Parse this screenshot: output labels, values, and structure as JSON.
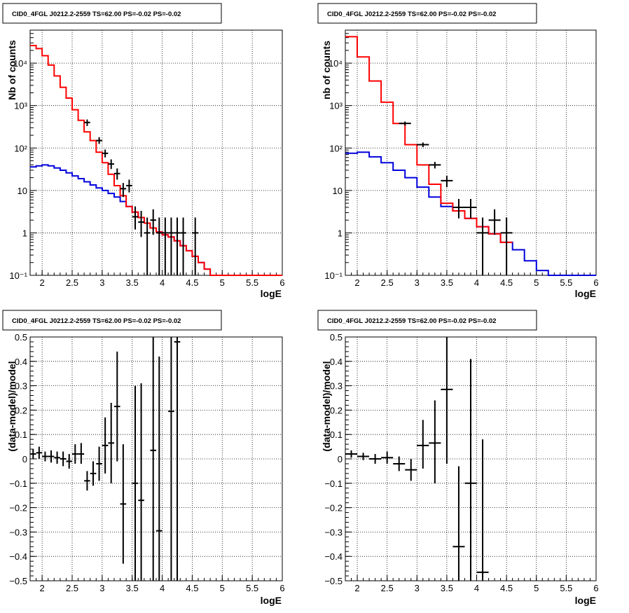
{
  "colors": {
    "frame": "#000000",
    "grid": "#000000",
    "data": "#000000",
    "total_model": "#ff0000",
    "component": "#0000dd"
  },
  "chart_data": [
    {
      "type": "line",
      "title": "CID0_4FGL J0212.2-2559 TS=62.00 PS=-0.02 PS=-0.02",
      "xlabel": "logE",
      "ylabel": "Nb of counts",
      "xlim": [
        1.8,
        6.0
      ],
      "ylim": [
        0.1,
        60000
      ],
      "yscale": "log",
      "grid": true,
      "xticks": [
        "2",
        "2.5",
        "3",
        "3.5",
        "4",
        "4.5",
        "5",
        "5.5",
        "6"
      ],
      "yticks": [
        [
          "10⁻¹",
          0.1
        ],
        [
          "1",
          1
        ],
        [
          "10",
          10
        ],
        [
          "10²",
          100
        ],
        [
          "10³",
          1000
        ],
        [
          "10⁴",
          10000
        ]
      ],
      "step_edges": [
        1.8,
        1.9,
        2.0,
        2.1,
        2.2,
        2.3,
        2.4,
        2.5,
        2.6,
        2.7,
        2.8,
        2.9,
        3.0,
        3.1,
        3.2,
        3.3,
        3.4,
        3.5,
        3.6,
        3.7,
        3.8,
        3.9,
        4.0,
        4.1,
        4.2,
        4.3,
        4.4,
        4.5,
        4.6,
        4.7,
        4.8,
        4.9,
        5.0,
        5.1,
        5.2,
        5.3,
        5.4,
        5.5,
        5.6,
        5.7,
        5.8,
        5.9,
        6.0
      ],
      "series": [
        {
          "role": "component",
          "values": [
            36,
            38,
            40,
            38,
            34,
            30,
            26,
            22,
            19,
            16,
            13.5,
            11.5,
            10,
            8.5,
            7,
            5.5,
            4.2,
            3.1,
            2.3,
            1.7,
            1.3,
            1.05,
            0.9,
            0.8,
            0.65,
            0.5,
            0.38,
            0.28,
            0.2,
            0.14,
            0.1,
            0.1,
            0.1,
            0.1,
            0.1,
            0.1,
            0.1,
            0.1,
            0.1,
            0.1,
            0.1,
            0.1
          ]
        },
        {
          "role": "total",
          "values": [
            26000,
            22000,
            15000,
            9000,
            5000,
            2700,
            1500,
            800,
            450,
            240,
            150,
            80,
            45,
            24,
            13,
            7.5,
            4.2,
            3.1,
            2.3,
            1.7,
            1.3,
            1.05,
            0.9,
            0.8,
            0.65,
            0.5,
            0.38,
            0.28,
            0.2,
            0.14,
            0.1,
            0.1,
            0.1,
            0.1,
            0.1,
            0.1,
            0.1,
            0.1,
            0.1,
            0.1,
            0.1,
            0.1
          ]
        }
      ],
      "points": [
        {
          "x": 2.75,
          "y": 400,
          "xerr": 0.05,
          "ylo": 330,
          "yhi": 470
        },
        {
          "x": 2.95,
          "y": 150,
          "xerr": 0.05,
          "ylo": 125,
          "yhi": 180
        },
        {
          "x": 3.05,
          "y": 75,
          "xerr": 0.05,
          "ylo": 60,
          "yhi": 92
        },
        {
          "x": 3.15,
          "y": 42,
          "xerr": 0.05,
          "ylo": 32,
          "yhi": 54
        },
        {
          "x": 3.25,
          "y": 25,
          "xerr": 0.05,
          "ylo": 18,
          "yhi": 33
        },
        {
          "x": 3.35,
          "y": 11,
          "xerr": 0.05,
          "ylo": 7,
          "yhi": 15
        },
        {
          "x": 3.45,
          "y": 13,
          "xerr": 0.05,
          "ylo": 9,
          "yhi": 18
        },
        {
          "x": 3.55,
          "y": 2.4,
          "xerr": 0.05,
          "ylo": 1.2,
          "yhi": 4.2
        },
        {
          "x": 3.65,
          "y": 1.8,
          "xerr": 0.05,
          "ylo": 0.8,
          "yhi": 3.3
        },
        {
          "x": 3.75,
          "y": 1,
          "xerr": 0.05,
          "ylo": 0.1,
          "yhi": 2.3
        },
        {
          "x": 3.85,
          "y": 2,
          "xerr": 0.05,
          "ylo": 0.9,
          "yhi": 3.6
        },
        {
          "x": 3.95,
          "y": 1,
          "xerr": 0.05,
          "ylo": 0.1,
          "yhi": 2.3
        },
        {
          "x": 4.05,
          "y": 1,
          "xerr": 0.05,
          "ylo": 0.1,
          "yhi": 2.3
        },
        {
          "x": 4.15,
          "y": 1,
          "xerr": 0.05,
          "ylo": 0.1,
          "yhi": 2.3
        },
        {
          "x": 4.25,
          "y": 1,
          "xerr": 0.05,
          "ylo": 0.1,
          "yhi": 2.3
        },
        {
          "x": 4.35,
          "y": 1,
          "xerr": 0.05,
          "ylo": 0.1,
          "yhi": 2.3
        },
        {
          "x": 4.55,
          "y": 1,
          "xerr": 0.05,
          "ylo": 0.1,
          "yhi": 2.3
        }
      ]
    },
    {
      "type": "line",
      "title": "CID0_4FGL J0212.2-2559 TS=62.00 PS=-0.02 PS=-0.02",
      "xlabel": "logE",
      "ylabel": "nb of counts",
      "xlim": [
        1.8,
        6.0
      ],
      "ylim": [
        0.1,
        60000
      ],
      "yscale": "log",
      "grid": true,
      "xticks": [
        "2",
        "2.5",
        "3",
        "3.5",
        "4",
        "4.5",
        "5",
        "5.5",
        "6"
      ],
      "yticks": [
        [
          "10⁻¹",
          0.1
        ],
        [
          "1",
          1
        ],
        [
          "10",
          10
        ],
        [
          "10²",
          100
        ],
        [
          "10³",
          1000
        ],
        [
          "10⁴",
          10000
        ]
      ],
      "step_edges": [
        1.8,
        2.0,
        2.2,
        2.4,
        2.6,
        2.8,
        3.0,
        3.2,
        3.4,
        3.6,
        3.8,
        4.0,
        4.2,
        4.4,
        4.6,
        4.8,
        5.0,
        5.2,
        5.4,
        5.6,
        5.8,
        6.0
      ],
      "series": [
        {
          "role": "component",
          "values": [
            75,
            80,
            62,
            45,
            30,
            20,
            12,
            7,
            4.2,
            3.3,
            2.2,
            1.4,
            0.95,
            0.6,
            0.4,
            0.22,
            0.13,
            0.1,
            0.1,
            0.1,
            0.1
          ]
        },
        {
          "role": "total",
          "values": [
            42000,
            14000,
            3800,
            1200,
            380,
            120,
            40,
            14,
            5,
            3.3,
            2.2,
            1.4,
            0.95,
            0.6
          ]
        }
      ],
      "points": [
        {
          "x": 2.8,
          "y": 380,
          "xerr": 0.1,
          "ylo": 340,
          "yhi": 420
        },
        {
          "x": 3.1,
          "y": 120,
          "xerr": 0.1,
          "ylo": 105,
          "yhi": 135
        },
        {
          "x": 3.3,
          "y": 40,
          "xerr": 0.1,
          "ylo": 33,
          "yhi": 47
        },
        {
          "x": 3.5,
          "y": 17,
          "xerr": 0.1,
          "ylo": 12,
          "yhi": 22
        },
        {
          "x": 3.7,
          "y": 4,
          "xerr": 0.1,
          "ylo": 2.2,
          "yhi": 6.3
        },
        {
          "x": 3.9,
          "y": 4,
          "xerr": 0.1,
          "ylo": 2.2,
          "yhi": 6.3
        },
        {
          "x": 4.1,
          "y": 1,
          "xerr": 0.1,
          "ylo": 0.1,
          "yhi": 2.3
        },
        {
          "x": 4.3,
          "y": 2,
          "xerr": 0.1,
          "ylo": 0.9,
          "yhi": 3.6
        },
        {
          "x": 4.5,
          "y": 1,
          "xerr": 0.1,
          "ylo": 0.1,
          "yhi": 2.3
        }
      ]
    },
    {
      "type": "scatter",
      "title": "CID0_4FGL J0212.2-2559 TS=62.00 PS=-0.02 PS=-0.02",
      "xlabel": "logE",
      "ylabel": "(data-model)/model",
      "xlim": [
        1.8,
        6.0
      ],
      "ylim": [
        -0.5,
        0.5
      ],
      "yscale": "linear",
      "grid": true,
      "xticks": [
        "2",
        "2.5",
        "3",
        "3.5",
        "4",
        "4.5",
        "5",
        "5.5",
        "6"
      ],
      "yticks": [
        [
          "−0.5",
          -0.5
        ],
        [
          "−0.4",
          -0.4
        ],
        [
          "−0.3",
          -0.3
        ],
        [
          "−0.2",
          -0.2
        ],
        [
          "−0.1",
          -0.1
        ],
        [
          "0",
          0
        ],
        [
          "0.1",
          0.1
        ],
        [
          "0.2",
          0.2
        ],
        [
          "0.3",
          0.3
        ],
        [
          "0.4",
          0.4
        ],
        [
          "0.5",
          0.5
        ]
      ],
      "points": [
        {
          "x": 1.85,
          "y": 0.02,
          "xerr": 0.05,
          "ylo": 0.0,
          "yhi": 0.04
        },
        {
          "x": 1.95,
          "y": 0.025,
          "xerr": 0.05,
          "ylo": 0.0,
          "yhi": 0.05
        },
        {
          "x": 2.05,
          "y": 0.01,
          "xerr": 0.05,
          "ylo": -0.01,
          "yhi": 0.03
        },
        {
          "x": 2.15,
          "y": 0.01,
          "xerr": 0.05,
          "ylo": -0.015,
          "yhi": 0.035
        },
        {
          "x": 2.25,
          "y": 0.005,
          "xerr": 0.05,
          "ylo": -0.02,
          "yhi": 0.03
        },
        {
          "x": 2.35,
          "y": 0.0,
          "xerr": 0.05,
          "ylo": -0.03,
          "yhi": 0.03
        },
        {
          "x": 2.45,
          "y": -0.01,
          "xerr": 0.05,
          "ylo": -0.04,
          "yhi": 0.02
        },
        {
          "x": 2.55,
          "y": 0.02,
          "xerr": 0.05,
          "ylo": -0.02,
          "yhi": 0.06
        },
        {
          "x": 2.65,
          "y": 0.02,
          "xerr": 0.05,
          "ylo": -0.02,
          "yhi": 0.065
        },
        {
          "x": 2.75,
          "y": -0.09,
          "xerr": 0.05,
          "ylo": -0.13,
          "yhi": -0.05
        },
        {
          "x": 2.85,
          "y": -0.06,
          "xerr": 0.05,
          "ylo": -0.11,
          "yhi": -0.01
        },
        {
          "x": 2.95,
          "y": -0.02,
          "xerr": 0.05,
          "ylo": -0.09,
          "yhi": 0.05
        },
        {
          "x": 3.05,
          "y": 0.055,
          "xerr": 0.05,
          "ylo": -0.06,
          "yhi": 0.17
        },
        {
          "x": 3.15,
          "y": 0.065,
          "xerr": 0.05,
          "ylo": -0.1,
          "yhi": 0.23
        },
        {
          "x": 3.25,
          "y": 0.215,
          "xerr": 0.05,
          "ylo": -0.01,
          "yhi": 0.44
        },
        {
          "x": 3.35,
          "y": -0.185,
          "xerr": 0.05,
          "ylo": -0.43,
          "yhi": 0.06
        },
        {
          "x": 3.55,
          "y": -0.1,
          "xerr": 0.05,
          "ylo": -0.5,
          "yhi": 0.3
        },
        {
          "x": 3.65,
          "y": -0.17,
          "xerr": 0.05,
          "ylo": -0.5,
          "yhi": 0.31
        },
        {
          "x": 3.85,
          "y": 0.035,
          "xerr": 0.05,
          "ylo": -0.5,
          "yhi": 0.5
        },
        {
          "x": 3.95,
          "y": -0.295,
          "xerr": 0.05,
          "ylo": -0.5,
          "yhi": 0.42
        },
        {
          "x": 4.15,
          "y": 0.195,
          "xerr": 0.05,
          "ylo": -0.5,
          "yhi": 0.5
        },
        {
          "x": 4.25,
          "y": 0.48,
          "xerr": 0.05,
          "ylo": -0.5,
          "yhi": 0.5
        }
      ]
    },
    {
      "type": "scatter",
      "title": "CID0_4FGL J0212.2-2559 TS=62.00 PS=-0.02 PS=-0.02",
      "xlabel": "logE",
      "ylabel": "(data-model)/model",
      "xlim": [
        1.8,
        6.0
      ],
      "ylim": [
        -0.5,
        0.5
      ],
      "yscale": "linear",
      "grid": true,
      "xticks": [
        "2",
        "2.5",
        "3",
        "3.5",
        "4",
        "4.5",
        "5",
        "5.5",
        "6"
      ],
      "yticks": [
        [
          "−0.5",
          -0.5
        ],
        [
          "−0.4",
          -0.4
        ],
        [
          "−0.3",
          -0.3
        ],
        [
          "−0.2",
          -0.2
        ],
        [
          "−0.1",
          -0.1
        ],
        [
          "0",
          0
        ],
        [
          "0.1",
          0.1
        ],
        [
          "0.2",
          0.2
        ],
        [
          "0.3",
          0.3
        ],
        [
          "0.4",
          0.4
        ],
        [
          "0.5",
          0.5
        ]
      ],
      "points": [
        {
          "x": 1.9,
          "y": 0.02,
          "xerr": 0.1,
          "ylo": 0.005,
          "yhi": 0.035
        },
        {
          "x": 2.1,
          "y": 0.01,
          "xerr": 0.1,
          "ylo": -0.005,
          "yhi": 0.025
        },
        {
          "x": 2.3,
          "y": 0.0,
          "xerr": 0.1,
          "ylo": -0.02,
          "yhi": 0.02
        },
        {
          "x": 2.5,
          "y": 0.005,
          "xerr": 0.1,
          "ylo": -0.02,
          "yhi": 0.03
        },
        {
          "x": 2.7,
          "y": -0.02,
          "xerr": 0.1,
          "ylo": -0.05,
          "yhi": 0.01
        },
        {
          "x": 2.9,
          "y": -0.045,
          "xerr": 0.1,
          "ylo": -0.09,
          "yhi": 0.0
        },
        {
          "x": 3.1,
          "y": 0.055,
          "xerr": 0.1,
          "ylo": -0.04,
          "yhi": 0.16
        },
        {
          "x": 3.3,
          "y": 0.065,
          "xerr": 0.1,
          "ylo": -0.1,
          "yhi": 0.24
        },
        {
          "x": 3.5,
          "y": 0.285,
          "xerr": 0.1,
          "ylo": -0.02,
          "yhi": 0.5
        },
        {
          "x": 3.7,
          "y": -0.36,
          "xerr": 0.1,
          "ylo": -0.5,
          "yhi": -0.03
        },
        {
          "x": 3.9,
          "y": -0.1,
          "xerr": 0.1,
          "ylo": -0.5,
          "yhi": 0.41
        },
        {
          "x": 4.1,
          "y": -0.465,
          "xerr": 0.1,
          "ylo": -0.5,
          "yhi": 0.08
        }
      ]
    }
  ]
}
